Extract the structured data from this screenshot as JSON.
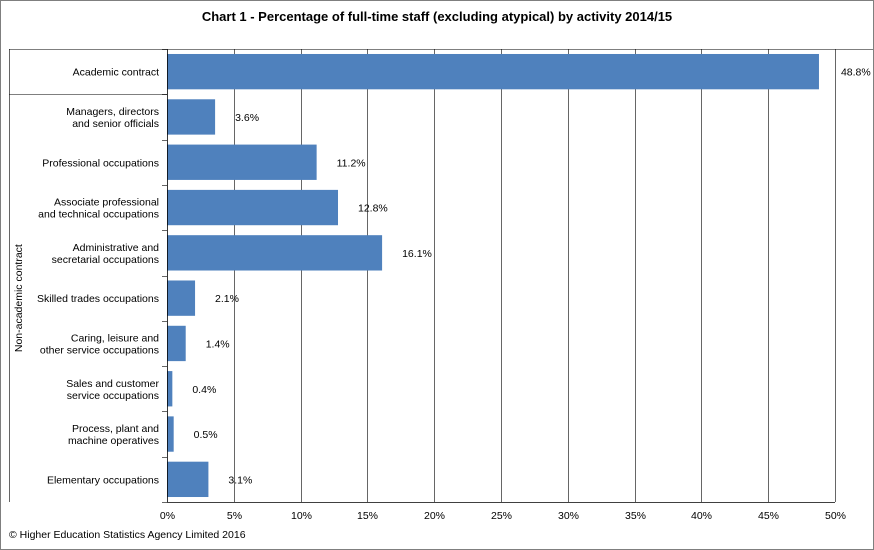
{
  "chart_data": {
    "type": "bar",
    "orientation": "horizontal",
    "title": "Chart 1 - Percentage of full-time staff (excluding atypical) by activity 2014/15",
    "categories": [
      [
        "Academic contract"
      ],
      [
        "Managers, directors",
        "and senior officials"
      ],
      [
        "Professional occupations"
      ],
      [
        "Associate professional",
        "and technical occupations"
      ],
      [
        "Administrative and",
        "secretarial occupations"
      ],
      [
        "Skilled trades occupations"
      ],
      [
        "Caring, leisure and",
        "other service occupations"
      ],
      [
        "Sales and customer",
        "service occupations"
      ],
      [
        "Process, plant and",
        "machine operatives"
      ],
      [
        "Elementary occupations"
      ]
    ],
    "values": [
      48.8,
      3.6,
      11.2,
      12.8,
      16.1,
      2.1,
      1.4,
      0.4,
      0.5,
      3.1
    ],
    "value_labels": [
      "48.8%",
      "3.6%",
      "11.2%",
      "12.8%",
      "16.1%",
      "2.1%",
      "1.4%",
      "0.4%",
      "0.5%",
      "3.1%"
    ],
    "group_label": "Non-academic contract",
    "xticks": [
      "0%",
      "5%",
      "10%",
      "15%",
      "20%",
      "25%",
      "30%",
      "35%",
      "40%",
      "45%",
      "50%"
    ],
    "xlim": [
      0,
      50
    ],
    "grid": true,
    "bar_color": "#4f81bd",
    "grid_color": "#000000"
  },
  "footer": {
    "copyright": "© Higher Education Statistics Agency Limited 2016"
  }
}
